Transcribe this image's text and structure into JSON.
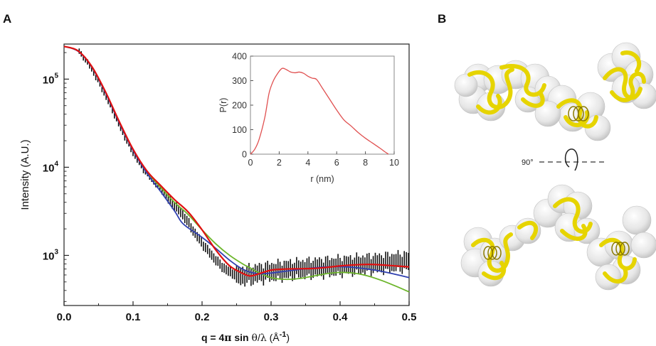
{
  "panel_labels": {
    "a": "A",
    "b": "B"
  },
  "colors": {
    "experimental": "#111111",
    "fit_red": "#e01010",
    "fit_blue": "#3040b0",
    "fit_green": "#6cb52a",
    "inset_line": "#e05050",
    "protein_ribbon": "#e6d400",
    "envelope": "#d8d8d8"
  },
  "chart_data": [
    {
      "type": "line",
      "yscale": "log",
      "xlabel_parts": {
        "prefix": "q = 4",
        "pi": "π",
        "mid": " sin ",
        "theta": "θ",
        "slash": "/",
        "lambda": "λ",
        "unit_open": " (Å",
        "exp": "-1",
        "unit_close": ")"
      },
      "ylabel": "Intensity (A.U.)",
      "xlim": [
        0.0,
        0.5
      ],
      "ylim": [
        270,
        250000
      ],
      "x_ticks": [
        "0.0",
        "0.1",
        "0.2",
        "0.3",
        "0.4",
        "0.5"
      ],
      "y_ticks": [
        {
          "base": "10",
          "exp": "3",
          "value": 1000
        },
        {
          "base": "10",
          "exp": "4",
          "value": 10000
        },
        {
          "base": "10",
          "exp": "5",
          "value": 100000
        }
      ],
      "series": [
        {
          "kind": "data-with-errorbars",
          "x": [
            0.022,
            0.025,
            0.028,
            0.031,
            0.034,
            0.037,
            0.04,
            0.043,
            0.046,
            0.049,
            0.052,
            0.055,
            0.058,
            0.061,
            0.064,
            0.067,
            0.07,
            0.073,
            0.076,
            0.079,
            0.082,
            0.085,
            0.088,
            0.091,
            0.094,
            0.097,
            0.1,
            0.103,
            0.106,
            0.109,
            0.112,
            0.115,
            0.118,
            0.121,
            0.124,
            0.127,
            0.13,
            0.133,
            0.136,
            0.139,
            0.142,
            0.145,
            0.148,
            0.151,
            0.154,
            0.157,
            0.16,
            0.163,
            0.166,
            0.169,
            0.172,
            0.175,
            0.178,
            0.181,
            0.184,
            0.187,
            0.19,
            0.193,
            0.196,
            0.199,
            0.202,
            0.205,
            0.208,
            0.211,
            0.214,
            0.217,
            0.22,
            0.223,
            0.226,
            0.229,
            0.232,
            0.235,
            0.238,
            0.241,
            0.244,
            0.247,
            0.25,
            0.253,
            0.256,
            0.259,
            0.262,
            0.265,
            0.268,
            0.271,
            0.274,
            0.277,
            0.28,
            0.283,
            0.286,
            0.289,
            0.292,
            0.295,
            0.298,
            0.301,
            0.304,
            0.307,
            0.31,
            0.313,
            0.316,
            0.319,
            0.322,
            0.325,
            0.328,
            0.331,
            0.334,
            0.337,
            0.34,
            0.343,
            0.346,
            0.349,
            0.352,
            0.355,
            0.358,
            0.361,
            0.364,
            0.367,
            0.37,
            0.373,
            0.376,
            0.379,
            0.382,
            0.385,
            0.388,
            0.391,
            0.394,
            0.397,
            0.4,
            0.403,
            0.406,
            0.409,
            0.412,
            0.415,
            0.418,
            0.421,
            0.424,
            0.427,
            0.43,
            0.433,
            0.436,
            0.439,
            0.442,
            0.445,
            0.448,
            0.451,
            0.454,
            0.457,
            0.46,
            0.463,
            0.466,
            0.469,
            0.472,
            0.475,
            0.478,
            0.481,
            0.484,
            0.487,
            0.49,
            0.493,
            0.496,
            0.499
          ],
          "y": [
            205000,
            190000,
            180000,
            167000,
            154000,
            142000,
            130000,
            118000,
            107000,
            97000,
            87000,
            78000,
            70000,
            62500,
            56000,
            50000,
            44500,
            39500,
            35000,
            31000,
            27800,
            24800,
            22100,
            19900,
            17900,
            16100,
            14600,
            13300,
            12200,
            11200,
            10300,
            9500,
            8900,
            8300,
            7800,
            7300,
            6900,
            6500,
            6100,
            5750,
            5400,
            5050,
            4700,
            4400,
            4150,
            3900,
            3700,
            3500,
            3300,
            3100,
            2900,
            2700,
            2500,
            2300,
            2100,
            1930,
            1780,
            1650,
            1530,
            1420,
            1320,
            1230,
            1150,
            1080,
            1010,
            950,
            890,
            840,
            795,
            755,
            720,
            690,
            665,
            645,
            630,
            620,
            612,
            608,
            605,
            605,
            607,
            610,
            615,
            620,
            625,
            630,
            636,
            642,
            648,
            653,
            658,
            663,
            668,
            672,
            676,
            680,
            684,
            688,
            692,
            696,
            700,
            703,
            706,
            709,
            712,
            715,
            718,
            721,
            724,
            727,
            730,
            733,
            736,
            739,
            742,
            745,
            748,
            751,
            754,
            757,
            760,
            763,
            766,
            769,
            772,
            775,
            778,
            781,
            784,
            787,
            790,
            793,
            796,
            799,
            802,
            805,
            808,
            811,
            814,
            817,
            820,
            823,
            826,
            829,
            832,
            835,
            838,
            841,
            844,
            847,
            850,
            853,
            856,
            859,
            862,
            865,
            868,
            871,
            874,
            877
          ],
          "color_key": "experimental"
        },
        {
          "kind": "fit",
          "color_key": "fit_red",
          "x": [
            0.0,
            0.02,
            0.04,
            0.06,
            0.08,
            0.1,
            0.12,
            0.14,
            0.16,
            0.18,
            0.2,
            0.22,
            0.24,
            0.26,
            0.27,
            0.28,
            0.3,
            0.32,
            0.34,
            0.36,
            0.38,
            0.4,
            0.42,
            0.44,
            0.46,
            0.48,
            0.5
          ],
          "y": [
            235000,
            210000,
            140000,
            72000,
            33000,
            16000,
            9100,
            6200,
            4300,
            3100,
            1950,
            1150,
            760,
            620,
            585,
            610,
            680,
            700,
            705,
            710,
            730,
            760,
            780,
            790,
            780,
            760,
            740
          ]
        },
        {
          "kind": "fit",
          "color_key": "fit_blue",
          "x": [
            0.0,
            0.02,
            0.04,
            0.06,
            0.08,
            0.1,
            0.12,
            0.14,
            0.16,
            0.17,
            0.18,
            0.2,
            0.22,
            0.24,
            0.26,
            0.28,
            0.3,
            0.32,
            0.34,
            0.36,
            0.38,
            0.4,
            0.42,
            0.44,
            0.46,
            0.48,
            0.5
          ],
          "y": [
            235000,
            208000,
            138000,
            70000,
            32000,
            15500,
            8600,
            5300,
            3200,
            2400,
            2050,
            1600,
            1200,
            880,
            690,
            620,
            630,
            660,
            690,
            720,
            740,
            745,
            730,
            700,
            660,
            610,
            560
          ]
        },
        {
          "kind": "fit",
          "color_key": "fit_green",
          "x": [
            0.0,
            0.02,
            0.04,
            0.06,
            0.08,
            0.1,
            0.12,
            0.14,
            0.16,
            0.18,
            0.2,
            0.22,
            0.24,
            0.26,
            0.27,
            0.28,
            0.3,
            0.32,
            0.34,
            0.36,
            0.38,
            0.4,
            0.42,
            0.44,
            0.46,
            0.48,
            0.5
          ],
          "y": [
            235000,
            209000,
            140000,
            71500,
            33000,
            16000,
            9000,
            5900,
            4000,
            2900,
            1950,
            1350,
            1000,
            790,
            720,
            650,
            560,
            535,
            545,
            580,
            620,
            640,
            630,
            585,
            520,
            450,
            385
          ]
        }
      ],
      "inset": {
        "type": "line",
        "xlabel": "r (nm)",
        "ylabel": "P(r)",
        "xlim": [
          0,
          10
        ],
        "ylim": [
          0,
          400
        ],
        "x_ticks": [
          "0",
          "2",
          "4",
          "6",
          "8",
          "10"
        ],
        "y_ticks": [
          "0",
          "100",
          "200",
          "300",
          "400"
        ],
        "x": [
          0,
          0.3,
          0.6,
          1.0,
          1.3,
          1.6,
          1.9,
          2.2,
          2.5,
          2.8,
          3.1,
          3.4,
          3.7,
          4.0,
          4.3,
          4.6,
          5.0,
          5.5,
          6.0,
          6.5,
          7.0,
          7.5,
          8.0,
          8.5,
          9.0,
          9.3,
          9.6
        ],
        "y": [
          0,
          20,
          60,
          150,
          250,
          300,
          330,
          350,
          345,
          335,
          332,
          335,
          330,
          318,
          310,
          305,
          270,
          225,
          180,
          140,
          115,
          88,
          65,
          45,
          25,
          12,
          0
        ],
        "color_key": "inset_line"
      }
    }
  ],
  "panel_b": {
    "rotation_label": "90°"
  }
}
